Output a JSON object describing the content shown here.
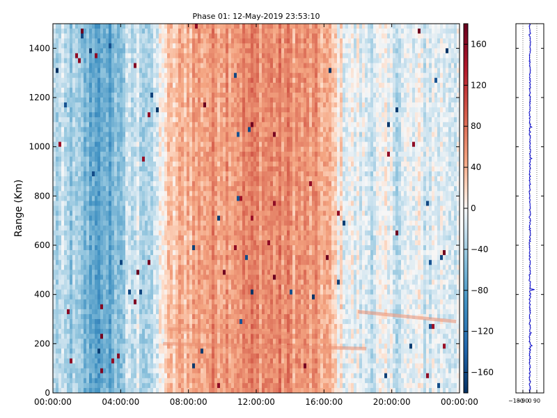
{
  "chart_data": [
    {
      "type": "heatmap",
      "title": "Phase 01: 12-May-2019 23:53:10",
      "xlabel": "",
      "ylabel": "Range (Km)",
      "x_tick_labels": [
        "00:00:00",
        "04:00:00",
        "08:00:00",
        "12:00:00",
        "16:00:00",
        "20:00:00",
        "00:00:00"
      ],
      "x_tick_hours": [
        0,
        4,
        8,
        12,
        16,
        20,
        24
      ],
      "xlim_hours": [
        0,
        24
      ],
      "y_ticks": [
        0,
        200,
        400,
        600,
        800,
        1000,
        1200,
        1400
      ],
      "ylim": [
        0,
        1500
      ],
      "colormap": "RdBu_r",
      "colorbar": {
        "range": [
          -180,
          180
        ],
        "ticks": [
          160,
          120,
          80,
          40,
          0,
          -40,
          -80,
          -120,
          -160
        ],
        "tick_labels": [
          "160",
          "120",
          "80",
          "40",
          "0",
          "−40",
          "−80",
          "−120",
          "−160"
        ]
      },
      "phase_profile_by_hour": [
        {
          "hour": 0,
          "value": -30
        },
        {
          "hour": 1,
          "value": -40
        },
        {
          "hour": 2,
          "value": -60
        },
        {
          "hour": 3,
          "value": -80
        },
        {
          "hour": 4,
          "value": -45
        },
        {
          "hour": 5,
          "value": -20
        },
        {
          "hour": 6,
          "value": -35
        },
        {
          "hour": 6.5,
          "value": 15
        },
        {
          "hour": 8,
          "value": 45
        },
        {
          "hour": 10,
          "value": 60
        },
        {
          "hour": 12,
          "value": 65
        },
        {
          "hour": 14,
          "value": 60
        },
        {
          "hour": 16,
          "value": 45
        },
        {
          "hour": 17,
          "value": 5
        },
        {
          "hour": 18,
          "value": -10
        },
        {
          "hour": 20,
          "value": -15
        },
        {
          "hour": 22,
          "value": -10
        },
        {
          "hour": 24,
          "value": -5
        }
      ],
      "grid": false
    },
    {
      "type": "line",
      "title": "",
      "xlabel": "",
      "ylabel": "",
      "x_tick_labels": [
        "−180",
        "−90",
        "0",
        "90"
      ],
      "x_ticks": [
        -180,
        -90,
        0,
        90
      ],
      "xlim": [
        -180,
        180
      ],
      "ylim": [
        0,
        1500
      ],
      "line_color": "#0000cc",
      "spikes": [
        {
          "range_km": 1470,
          "value": 175
        },
        {
          "range_km": 450,
          "value": 165
        },
        {
          "range_km": 420,
          "value": 60
        }
      ],
      "grid": "vertical dotted"
    }
  ]
}
